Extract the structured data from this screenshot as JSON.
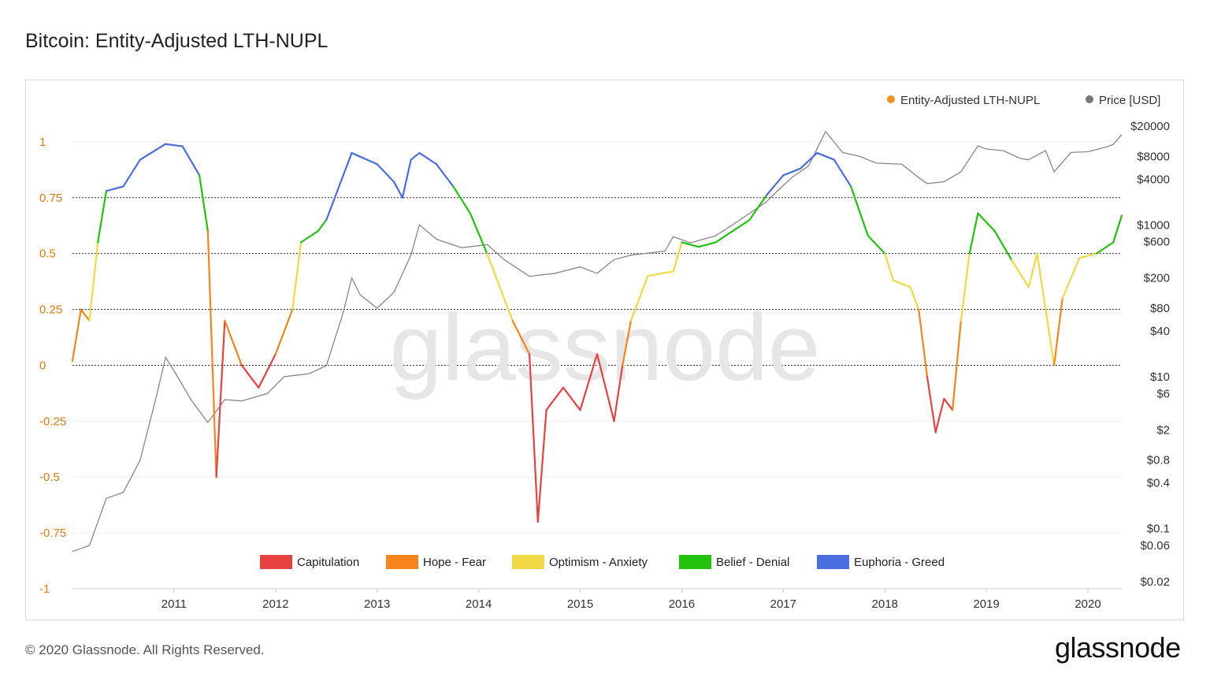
{
  "title": "Bitcoin: Entity-Adjusted LTH-NUPL",
  "footer": "© 2020 Glassnode. All Rights Reserved.",
  "brand": "glassnode",
  "watermark": "glassnode",
  "chart_data": {
    "type": "line",
    "title": "Bitcoin: Entity-Adjusted LTH-NUPL",
    "x_ticks": [
      "2011",
      "2012",
      "2013",
      "2014",
      "2015",
      "2016",
      "2017",
      "2018",
      "2019",
      "2020"
    ],
    "xlim": [
      "2010-07",
      "2020-11"
    ],
    "y_left": {
      "ticks": [
        "1",
        "0.75",
        "0.5",
        "0.25",
        "0",
        "-0.25",
        "-0.5",
        "-0.75",
        "-1"
      ],
      "ylim": [
        -1,
        1.25
      ],
      "reference_lines": [
        0.75,
        0.5,
        0.25,
        0
      ],
      "color": "#e07b10"
    },
    "y_right": {
      "ticks": [
        "$20000",
        "$8000",
        "$4000",
        "$1000",
        "$600",
        "$200",
        "$80",
        "$40",
        "$10",
        "$6",
        "$2",
        "$0.8",
        "$0.4",
        "$0.1",
        "$0.06",
        "$0.02"
      ],
      "scale": "log",
      "ylim": [
        0.02,
        20000
      ]
    },
    "legend_top": [
      {
        "label": "Entity-Adjusted LTH-NUPL",
        "color": "#f7931a"
      },
      {
        "label": "Price [USD]",
        "color": "#777777"
      }
    ],
    "zones": [
      {
        "label": "Capitulation",
        "color": "#e84141",
        "range": [
          -1,
          0
        ]
      },
      {
        "label": "Hope - Fear",
        "color": "#f7841a",
        "range": [
          0,
          0.25
        ]
      },
      {
        "label": "Optimism - Anxiety",
        "color": "#f0d945",
        "range": [
          0.25,
          0.5
        ]
      },
      {
        "label": "Belief - Denial",
        "color": "#22c20e",
        "range": [
          0.5,
          0.75
        ]
      },
      {
        "label": "Euphoria - Greed",
        "color": "#4a6ee0",
        "range": [
          0.75,
          1.25
        ]
      }
    ],
    "series": [
      {
        "name": "Entity-Adjusted LTH-NUPL",
        "axis": "left",
        "points": [
          [
            "2010-07",
            0.02
          ],
          [
            "2010-08",
            0.25
          ],
          [
            "2010-09",
            0.2
          ],
          [
            "2010-10",
            0.55
          ],
          [
            "2010-11",
            0.78
          ],
          [
            "2011-01",
            0.8
          ],
          [
            "2011-03",
            0.92
          ],
          [
            "2011-06",
            0.99
          ],
          [
            "2011-08",
            0.98
          ],
          [
            "2011-10",
            0.85
          ],
          [
            "2011-11",
            0.6
          ],
          [
            "2011-12",
            -0.5
          ],
          [
            "2012-01",
            0.2
          ],
          [
            "2012-03",
            0.0
          ],
          [
            "2012-05",
            -0.1
          ],
          [
            "2012-07",
            0.05
          ],
          [
            "2012-09",
            0.25
          ],
          [
            "2012-10",
            0.55
          ],
          [
            "2012-12",
            0.6
          ],
          [
            "2013-01",
            0.65
          ],
          [
            "2013-03",
            0.85
          ],
          [
            "2013-04",
            0.95
          ],
          [
            "2013-07",
            0.9
          ],
          [
            "2013-09",
            0.82
          ],
          [
            "2013-10",
            0.75
          ],
          [
            "2013-11",
            0.92
          ],
          [
            "2013-12",
            0.95
          ],
          [
            "2014-02",
            0.9
          ],
          [
            "2014-04",
            0.8
          ],
          [
            "2014-06",
            0.68
          ],
          [
            "2014-08",
            0.5
          ],
          [
            "2014-10",
            0.3
          ],
          [
            "2014-11",
            0.2
          ],
          [
            "2015-01",
            0.05
          ],
          [
            "2015-02",
            -0.7
          ],
          [
            "2015-03",
            -0.2
          ],
          [
            "2015-05",
            -0.1
          ],
          [
            "2015-07",
            -0.2
          ],
          [
            "2015-09",
            0.05
          ],
          [
            "2015-10",
            -0.1
          ],
          [
            "2015-11",
            -0.25
          ],
          [
            "2015-12",
            0.0
          ],
          [
            "2016-01",
            0.2
          ],
          [
            "2016-03",
            0.4
          ],
          [
            "2016-06",
            0.42
          ],
          [
            "2016-07",
            0.55
          ],
          [
            "2016-09",
            0.53
          ],
          [
            "2016-11",
            0.55
          ],
          [
            "2017-01",
            0.6
          ],
          [
            "2017-03",
            0.65
          ],
          [
            "2017-05",
            0.76
          ],
          [
            "2017-07",
            0.85
          ],
          [
            "2017-09",
            0.88
          ],
          [
            "2017-11",
            0.95
          ],
          [
            "2018-01",
            0.92
          ],
          [
            "2018-03",
            0.8
          ],
          [
            "2018-05",
            0.58
          ],
          [
            "2018-07",
            0.5
          ],
          [
            "2018-08",
            0.38
          ],
          [
            "2018-10",
            0.35
          ],
          [
            "2018-11",
            0.25
          ],
          [
            "2018-12",
            -0.05
          ],
          [
            "2019-01",
            -0.3
          ],
          [
            "2019-02",
            -0.15
          ],
          [
            "2019-03",
            -0.2
          ],
          [
            "2019-04",
            0.2
          ],
          [
            "2019-05",
            0.5
          ],
          [
            "2019-06",
            0.68
          ],
          [
            "2019-08",
            0.6
          ],
          [
            "2019-10",
            0.47
          ],
          [
            "2019-12",
            0.35
          ],
          [
            "2020-01",
            0.5
          ],
          [
            "2020-03",
            0.0
          ],
          [
            "2020-04",
            0.3
          ],
          [
            "2020-06",
            0.48
          ],
          [
            "2020-08",
            0.5
          ],
          [
            "2020-10",
            0.55
          ],
          [
            "2020-11",
            0.67
          ]
        ]
      },
      {
        "name": "Price [USD]",
        "axis": "right",
        "points": [
          [
            "2010-07",
            0.05
          ],
          [
            "2010-09",
            0.06
          ],
          [
            "2010-11",
            0.25
          ],
          [
            "2011-01",
            0.3
          ],
          [
            "2011-03",
            0.8
          ],
          [
            "2011-05",
            6
          ],
          [
            "2011-06",
            18
          ],
          [
            "2011-07",
            12
          ],
          [
            "2011-09",
            5
          ],
          [
            "2011-11",
            2.5
          ],
          [
            "2012-01",
            5
          ],
          [
            "2012-03",
            4.8
          ],
          [
            "2012-06",
            6
          ],
          [
            "2012-08",
            10
          ],
          [
            "2012-11",
            11
          ],
          [
            "2013-01",
            14
          ],
          [
            "2013-03",
            70
          ],
          [
            "2013-04",
            200
          ],
          [
            "2013-05",
            120
          ],
          [
            "2013-07",
            80
          ],
          [
            "2013-09",
            130
          ],
          [
            "2013-11",
            400
          ],
          [
            "2013-12",
            1000
          ],
          [
            "2014-02",
            650
          ],
          [
            "2014-05",
            500
          ],
          [
            "2014-08",
            550
          ],
          [
            "2014-10",
            350
          ],
          [
            "2015-01",
            210
          ],
          [
            "2015-04",
            230
          ],
          [
            "2015-07",
            280
          ],
          [
            "2015-09",
            230
          ],
          [
            "2015-11",
            350
          ],
          [
            "2016-01",
            400
          ],
          [
            "2016-05",
            450
          ],
          [
            "2016-06",
            700
          ],
          [
            "2016-08",
            580
          ],
          [
            "2016-11",
            720
          ],
          [
            "2017-01",
            1000
          ],
          [
            "2017-05",
            2000
          ],
          [
            "2017-06",
            2600
          ],
          [
            "2017-08",
            4200
          ],
          [
            "2017-10",
            6000
          ],
          [
            "2017-12",
            17000
          ],
          [
            "2018-02",
            9000
          ],
          [
            "2018-04",
            8000
          ],
          [
            "2018-06",
            6500
          ],
          [
            "2018-09",
            6300
          ],
          [
            "2018-11",
            4200
          ],
          [
            "2018-12",
            3500
          ],
          [
            "2019-02",
            3700
          ],
          [
            "2019-04",
            5000
          ],
          [
            "2019-06",
            11000
          ],
          [
            "2019-07",
            10000
          ],
          [
            "2019-09",
            9500
          ],
          [
            "2019-11",
            7500
          ],
          [
            "2019-12",
            7200
          ],
          [
            "2020-02",
            9500
          ],
          [
            "2020-03",
            5000
          ],
          [
            "2020-05",
            9000
          ],
          [
            "2020-07",
            9200
          ],
          [
            "2020-09",
            10500
          ],
          [
            "2020-10",
            11500
          ],
          [
            "2020-11",
            15500
          ]
        ]
      }
    ]
  }
}
